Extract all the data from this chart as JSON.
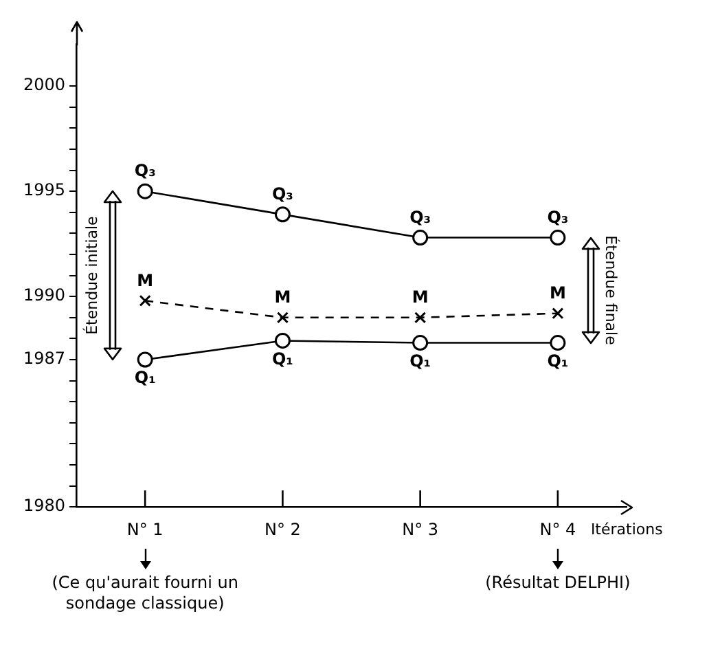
{
  "chart_data": {
    "type": "line",
    "xlabel": "Itérations",
    "categories": [
      "N° 1",
      "N° 2",
      "N° 3",
      "N° 4"
    ],
    "series": [
      {
        "name": "Q₃",
        "color": "#000000",
        "values": [
          1995,
          1993.9,
          1992.8,
          1992.8
        ],
        "marker": "circle",
        "line_style": "solid"
      },
      {
        "name": "M",
        "color": "#000000",
        "values": [
          1989.8,
          1989,
          1989,
          1989.2
        ],
        "marker": "cross",
        "line_style": "dashed"
      },
      {
        "name": "Q₁",
        "color": "#000000",
        "values": [
          1987,
          1987.9,
          1987.8,
          1987.8
        ],
        "marker": "circle",
        "line_style": "solid"
      }
    ],
    "ylim": [
      1980,
      2002
    ],
    "yticks": [
      1980,
      {
        "value": 1981,
        "label": null
      },
      {
        "value": 1982,
        "label": null
      },
      {
        "value": 1983,
        "label": null
      },
      {
        "value": 1984,
        "label": null
      },
      {
        "value": 1985,
        "label": null
      },
      {
        "value": 1986,
        "label": null
      },
      1987,
      {
        "value": 1988,
        "label": null
      },
      {
        "value": 1989,
        "label": null
      },
      1990,
      {
        "value": 1991,
        "label": null
      },
      {
        "value": 1992,
        "label": null
      },
      {
        "value": 1993,
        "label": null
      },
      {
        "value": 1994,
        "label": null
      },
      1995,
      {
        "value": 1996,
        "label": null
      },
      {
        "value": 1997,
        "label": null
      },
      {
        "value": 1998,
        "label": null
      },
      {
        "value": 1999,
        "label": null
      },
      2000
    ],
    "grid": false,
    "legend": false,
    "annotations": [
      "Étendue initiale",
      "Étendue finale",
      "(Ce qu'aurait fourni un sondage classique)",
      "(Résultat DELPHI)"
    ]
  }
}
